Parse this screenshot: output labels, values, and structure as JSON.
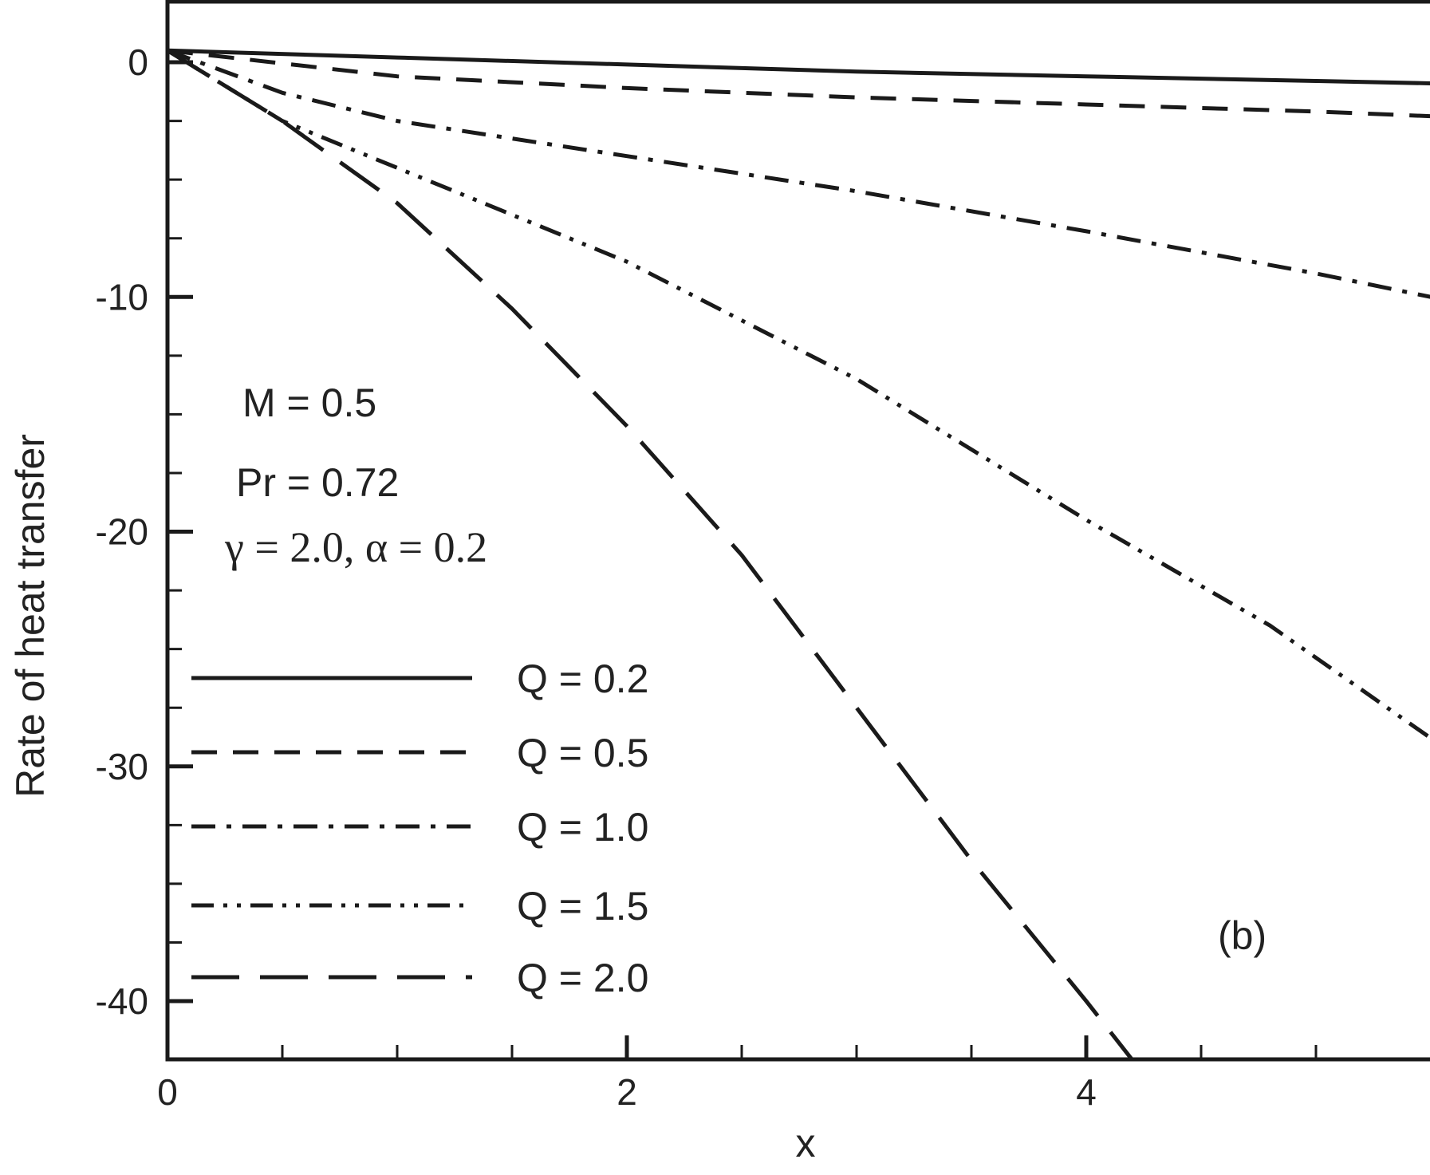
{
  "chart_data": {
    "type": "line",
    "title": "",
    "xlabel": "x",
    "ylabel": "Rate of heat transfer",
    "xlim": [
      0,
      5.5
    ],
    "ylim": [
      -42.5,
      2.5
    ],
    "x_ticks": [
      0,
      2,
      4
    ],
    "y_ticks": [
      0,
      -10,
      -20,
      -30,
      -40
    ],
    "legend_position": "lower-left",
    "grid": false,
    "series": [
      {
        "name": "Q = 0.2",
        "dash": "solid",
        "x": [
          0,
          1,
          2,
          3,
          4,
          5,
          5.5
        ],
        "y": [
          0.5,
          0.2,
          -0.1,
          -0.4,
          -0.6,
          -0.8,
          -0.9
        ]
      },
      {
        "name": "Q = 0.5",
        "dash": "dash",
        "x": [
          0,
          1,
          2,
          3,
          4,
          5,
          5.5
        ],
        "y": [
          0.5,
          -0.6,
          -1.1,
          -1.5,
          -1.8,
          -2.1,
          -2.3
        ]
      },
      {
        "name": "Q = 1.0",
        "dash": "dashdot",
        "x": [
          0,
          0.5,
          1,
          2,
          3,
          4,
          5,
          5.5
        ],
        "y": [
          0.5,
          -1.3,
          -2.5,
          -4.0,
          -5.5,
          -7.2,
          -9.0,
          -10.0
        ]
      },
      {
        "name": "Q = 1.5",
        "dash": "dashdotdot",
        "x": [
          0,
          0.5,
          1,
          2,
          3,
          4,
          4.8,
          5.5
        ],
        "y": [
          0.5,
          -2.5,
          -4.5,
          -8.5,
          -13.5,
          -19.5,
          -24.0,
          -28.8
        ]
      },
      {
        "name": "Q = 2.0",
        "dash": "longdash",
        "x": [
          0,
          0.5,
          1,
          1.5,
          2,
          2.5,
          3,
          3.5,
          4,
          4.2
        ],
        "y": [
          0.5,
          -2.5,
          -6.0,
          -10.5,
          -15.5,
          -21.0,
          -27.5,
          -34.0,
          -40.0,
          -42.5
        ]
      }
    ],
    "annotations": {
      "line1": "M = 0.5",
      "line2": "Pr = 0.72",
      "line3": "γ = 2.0, α = 0.2",
      "panel": "(b)"
    }
  }
}
